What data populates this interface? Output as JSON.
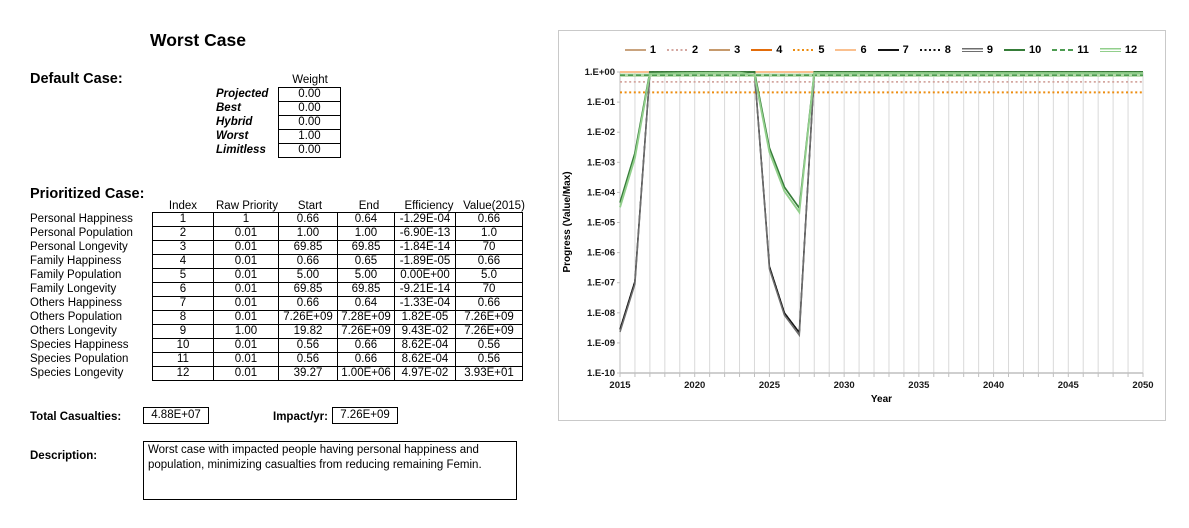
{
  "title": "Worst Case",
  "default_case": {
    "label": "Default Case:",
    "weight_header": "Weight",
    "rows": [
      {
        "label": "Projected",
        "value": "0.00"
      },
      {
        "label": "Best",
        "value": "0.00"
      },
      {
        "label": "Hybrid",
        "value": "0.00"
      },
      {
        "label": "Worst",
        "value": "1.00"
      },
      {
        "label": "Limitless",
        "value": "0.00"
      }
    ]
  },
  "prioritized_case": {
    "label": "Prioritized Case:",
    "columns": [
      "Index",
      "Raw Priority",
      "Start",
      "End",
      "Efficiency",
      "Value(2015)"
    ],
    "rows": [
      {
        "label": "Personal Happiness",
        "cells": [
          "1",
          "1",
          "0.66",
          "0.64",
          "-1.29E-04",
          "0.66"
        ]
      },
      {
        "label": "Personal Population",
        "cells": [
          "2",
          "0.01",
          "1.00",
          "1.00",
          "-6.90E-13",
          "1.0"
        ]
      },
      {
        "label": "Personal Longevity",
        "cells": [
          "3",
          "0.01",
          "69.85",
          "69.85",
          "-1.84E-14",
          "70"
        ]
      },
      {
        "label": "Family Happiness",
        "cells": [
          "4",
          "0.01",
          "0.66",
          "0.65",
          "-1.89E-05",
          "0.66"
        ]
      },
      {
        "label": "Family Population",
        "cells": [
          "5",
          "0.01",
          "5.00",
          "5.00",
          "0.00E+00",
          "5.0"
        ]
      },
      {
        "label": "Family Longevity",
        "cells": [
          "6",
          "0.01",
          "69.85",
          "69.85",
          "-9.21E-14",
          "70"
        ]
      },
      {
        "label": "Others Happiness",
        "cells": [
          "7",
          "0.01",
          "0.66",
          "0.64",
          "-1.33E-04",
          "0.66"
        ]
      },
      {
        "label": "Others Population",
        "cells": [
          "8",
          "0.01",
          "7.26E+09",
          "7.28E+09",
          "1.82E-05",
          "7.26E+09"
        ]
      },
      {
        "label": "Others Longevity",
        "cells": [
          "9",
          "1.00",
          "19.82",
          "7.26E+09",
          "9.43E-02",
          "7.26E+09"
        ]
      },
      {
        "label": "Species Happiness",
        "cells": [
          "10",
          "0.01",
          "0.56",
          "0.66",
          "8.62E-04",
          "0.56"
        ]
      },
      {
        "label": "Species Population",
        "cells": [
          "11",
          "0.01",
          "0.56",
          "0.66",
          "8.62E-04",
          "0.56"
        ]
      },
      {
        "label": "Species Longevity",
        "cells": [
          "12",
          "0.01",
          "39.27",
          "1.00E+06",
          "4.97E-02",
          "3.93E+01"
        ]
      }
    ]
  },
  "totals": {
    "casualties_label": "Total Casualties:",
    "casualties_value": "4.88E+07",
    "impact_label": "Impact/yr:",
    "impact_value": "7.26E+09"
  },
  "description": {
    "label": "Description:",
    "text": "Worst case with impacted people having personal happiness and population, minimizing casualties from reducing remaining Femin."
  },
  "chart_data": {
    "type": "line",
    "xlabel": "Year",
    "ylabel": "Progress (Value/Max)",
    "x_range": [
      2015,
      2050
    ],
    "x_ticks": [
      2015,
      2020,
      2025,
      2030,
      2035,
      2040,
      2045,
      2050
    ],
    "x_gridline_step": 1,
    "y_scale": "log",
    "y_tick_labels": [
      "1.E+00",
      "1.E-01",
      "1.E-02",
      "1.E-03",
      "1.E-04",
      "1.E-05",
      "1.E-06",
      "1.E-07",
      "1.E-08",
      "1.E-09",
      "1.E-10"
    ],
    "y_range": [
      1e-10,
      1
    ],
    "legend_position": "top",
    "grid_color": "#d9d9d9",
    "axis_color": "#bfbfbf",
    "series": [
      {
        "name": "1",
        "color": "#c9a37e",
        "dash": "solid",
        "width": 1.5,
        "points": [
          [
            2015,
            1
          ],
          [
            2050,
            1
          ]
        ]
      },
      {
        "name": "2",
        "color": "#d4a7a0",
        "dash": "dotted",
        "width": 1.8,
        "points": [
          [
            2015,
            0.47
          ],
          [
            2050,
            0.47
          ]
        ]
      },
      {
        "name": "3",
        "color": "#c69a6d",
        "dash": "solid",
        "width": 1.5,
        "points": [
          [
            2015,
            1
          ],
          [
            2050,
            1
          ]
        ]
      },
      {
        "name": "4",
        "color": "#e36c0a",
        "dash": "solid",
        "width": 1.8,
        "points": [
          [
            2015,
            1
          ],
          [
            2050,
            1
          ]
        ]
      },
      {
        "name": "5",
        "color": "#ed8d10",
        "dash": "dotted",
        "width": 2,
        "points": [
          [
            2015,
            0.21
          ],
          [
            2050,
            0.21
          ]
        ]
      },
      {
        "name": "6",
        "color": "#fac08f",
        "dash": "solid",
        "width": 2,
        "points": [
          [
            2015,
            1
          ],
          [
            2050,
            1
          ]
        ]
      },
      {
        "name": "7",
        "color": "#151515",
        "dash": "solid",
        "width": 1.5,
        "points": [
          [
            2015,
            2.8e-09
          ],
          [
            2016,
            1.1e-07
          ],
          [
            2017,
            1
          ],
          [
            2024,
            1
          ],
          [
            2025,
            3.5e-07
          ],
          [
            2026,
            1e-08
          ],
          [
            2027,
            2.2e-09
          ],
          [
            2028,
            1
          ],
          [
            2050,
            1
          ]
        ]
      },
      {
        "name": "8",
        "color": "#151515",
        "dash": "dotted",
        "width": 1.4,
        "points": [
          [
            2015,
            2.8e-09
          ],
          [
            2016,
            1.1e-07
          ],
          [
            2017,
            1
          ],
          [
            2024,
            1
          ],
          [
            2025,
            3.5e-07
          ],
          [
            2026,
            1e-08
          ],
          [
            2027,
            2.2e-09
          ],
          [
            2028,
            1
          ],
          [
            2050,
            1
          ]
        ]
      },
      {
        "name": "9",
        "color": "#6e6e6e",
        "dash": "solid",
        "width": 1.5,
        "double": true,
        "points": [
          [
            2015,
            2.3e-09
          ],
          [
            2016,
            9e-08
          ],
          [
            2017,
            0.97
          ],
          [
            2024,
            0.97
          ],
          [
            2025,
            2.9e-07
          ],
          [
            2026,
            8.3e-09
          ],
          [
            2027,
            1.8e-09
          ],
          [
            2028,
            0.97
          ],
          [
            2050,
            0.97
          ]
        ]
      },
      {
        "name": "10",
        "color": "#357c38",
        "dash": "solid",
        "width": 1.7,
        "points": [
          [
            2015,
            4.6e-05
          ],
          [
            2016,
            0.002
          ],
          [
            2017,
            1
          ],
          [
            2024,
            1
          ],
          [
            2025,
            0.003
          ],
          [
            2026,
            0.00015
          ],
          [
            2027,
            3e-05
          ],
          [
            2028,
            1
          ],
          [
            2050,
            1
          ]
        ]
      },
      {
        "name": "11",
        "color": "#4d9c51",
        "dash": "dashed",
        "width": 1.7,
        "base_color": "#b2d9a8",
        "points": [
          [
            2015,
            0.78
          ],
          [
            2050,
            0.78
          ]
        ]
      },
      {
        "name": "12",
        "color": "#92cf8c",
        "dash": "solid",
        "width": 1.9,
        "double": true,
        "points": [
          [
            2015,
            3.2e-05
          ],
          [
            2016,
            0.0014
          ],
          [
            2017,
            0.87
          ],
          [
            2019,
            0.91
          ],
          [
            2021,
            0.94
          ],
          [
            2023,
            0.955
          ],
          [
            2024,
            0.79
          ],
          [
            2025,
            0.0022
          ],
          [
            2026,
            0.00011
          ],
          [
            2027,
            2.2e-05
          ],
          [
            2028,
            0.92
          ],
          [
            2050,
            0.92
          ]
        ]
      }
    ]
  }
}
